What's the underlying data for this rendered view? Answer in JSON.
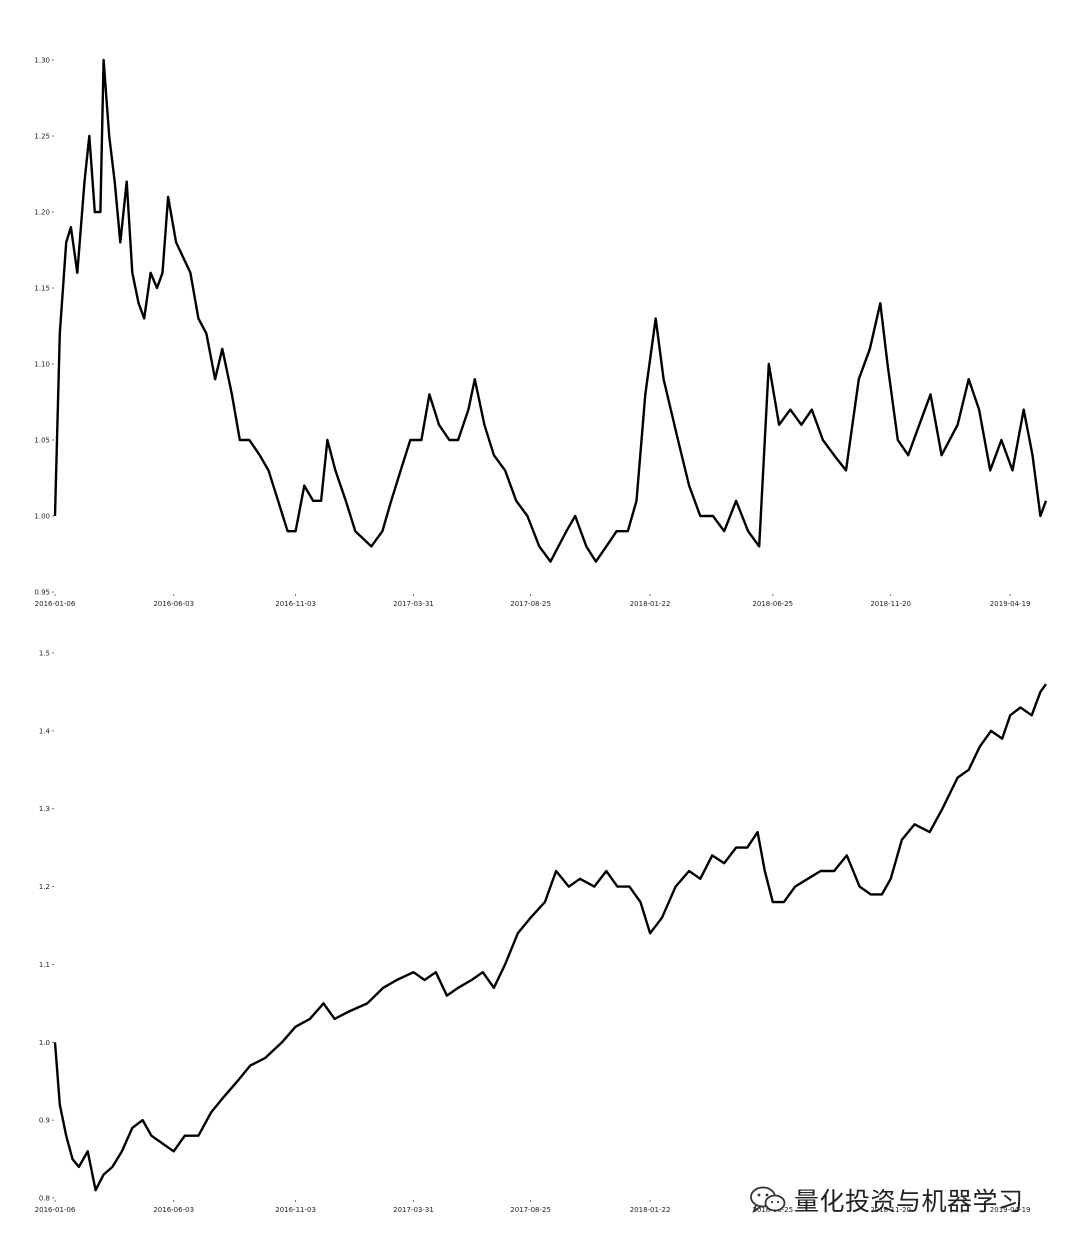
{
  "chart_data": [
    {
      "type": "line",
      "ylim": [
        0.95,
        1.3
      ],
      "yticks": [
        "0.95",
        "1.00",
        "1.05",
        "1.10",
        "1.15",
        "1.20",
        "1.25",
        "1.30"
      ],
      "xticks": [
        "2016-01-06",
        "2016-06-03",
        "2016-11-03",
        "2017-03-31",
        "2017-08-25",
        "2018-01-22",
        "2018-06-25",
        "2018-11-20",
        "2019-04-19"
      ],
      "x_range": [
        "2016-01-06",
        "2019-06-03"
      ],
      "grid": false,
      "series": [
        {
          "points": [
            [
              "2016-01-06",
              1.0
            ],
            [
              "2016-01-12",
              1.12
            ],
            [
              "2016-01-20",
              1.18
            ],
            [
              "2016-01-26",
              1.19
            ],
            [
              "2016-02-03",
              1.16
            ],
            [
              "2016-02-12",
              1.22
            ],
            [
              "2016-02-18",
              1.25
            ],
            [
              "2016-02-25",
              1.2
            ],
            [
              "2016-03-03",
              1.2
            ],
            [
              "2016-03-07",
              1.3
            ],
            [
              "2016-03-14",
              1.25
            ],
            [
              "2016-03-21",
              1.22
            ],
            [
              "2016-03-28",
              1.18
            ],
            [
              "2016-04-05",
              1.22
            ],
            [
              "2016-04-12",
              1.16
            ],
            [
              "2016-04-20",
              1.14
            ],
            [
              "2016-04-27",
              1.13
            ],
            [
              "2016-05-05",
              1.16
            ],
            [
              "2016-05-13",
              1.15
            ],
            [
              "2016-05-20",
              1.16
            ],
            [
              "2016-05-27",
              1.21
            ],
            [
              "2016-06-06",
              1.18
            ],
            [
              "2016-06-15",
              1.17
            ],
            [
              "2016-06-24",
              1.16
            ],
            [
              "2016-07-04",
              1.13
            ],
            [
              "2016-07-14",
              1.12
            ],
            [
              "2016-07-25",
              1.09
            ],
            [
              "2016-08-03",
              1.11
            ],
            [
              "2016-08-15",
              1.08
            ],
            [
              "2016-08-25",
              1.05
            ],
            [
              "2016-09-06",
              1.05
            ],
            [
              "2016-09-19",
              1.04
            ],
            [
              "2016-09-30",
              1.03
            ],
            [
              "2016-10-12",
              1.01
            ],
            [
              "2016-10-24",
              0.99
            ],
            [
              "2016-11-03",
              0.99
            ],
            [
              "2016-11-14",
              1.02
            ],
            [
              "2016-11-25",
              1.01
            ],
            [
              "2016-12-05",
              1.01
            ],
            [
              "2016-12-13",
              1.05
            ],
            [
              "2016-12-23",
              1.03
            ],
            [
              "2017-01-05",
              1.01
            ],
            [
              "2017-01-17",
              0.99
            ],
            [
              "2017-02-06",
              0.98
            ],
            [
              "2017-02-20",
              0.99
            ],
            [
              "2017-03-03",
              1.01
            ],
            [
              "2017-03-15",
              1.03
            ],
            [
              "2017-03-27",
              1.05
            ],
            [
              "2017-04-10",
              1.05
            ],
            [
              "2017-04-20",
              1.08
            ],
            [
              "2017-05-02",
              1.06
            ],
            [
              "2017-05-15",
              1.05
            ],
            [
              "2017-05-26",
              1.05
            ],
            [
              "2017-06-08",
              1.07
            ],
            [
              "2017-06-16",
              1.09
            ],
            [
              "2017-06-28",
              1.06
            ],
            [
              "2017-07-10",
              1.04
            ],
            [
              "2017-07-24",
              1.03
            ],
            [
              "2017-08-07",
              1.01
            ],
            [
              "2017-08-21",
              1.0
            ],
            [
              "2017-09-05",
              0.98
            ],
            [
              "2017-09-19",
              0.97
            ],
            [
              "2017-10-09",
              0.99
            ],
            [
              "2017-10-20",
              1.0
            ],
            [
              "2017-11-03",
              0.98
            ],
            [
              "2017-11-15",
              0.97
            ],
            [
              "2017-11-28",
              0.98
            ],
            [
              "2017-12-11",
              0.99
            ],
            [
              "2017-12-25",
              0.99
            ],
            [
              "2018-01-05",
              1.01
            ],
            [
              "2018-01-16",
              1.08
            ],
            [
              "2018-01-29",
              1.13
            ],
            [
              "2018-02-08",
              1.09
            ],
            [
              "2018-02-26",
              1.05
            ],
            [
              "2018-03-12",
              1.02
            ],
            [
              "2018-03-26",
              1.0
            ],
            [
              "2018-04-11",
              1.0
            ],
            [
              "2018-04-25",
              0.99
            ],
            [
              "2018-05-10",
              1.01
            ],
            [
              "2018-05-25",
              0.99
            ],
            [
              "2018-06-08",
              0.98
            ],
            [
              "2018-06-20",
              1.1
            ],
            [
              "2018-07-03",
              1.06
            ],
            [
              "2018-07-17",
              1.07
            ],
            [
              "2018-07-31",
              1.06
            ],
            [
              "2018-08-13",
              1.07
            ],
            [
              "2018-08-27",
              1.05
            ],
            [
              "2018-09-10",
              1.04
            ],
            [
              "2018-09-25",
              1.03
            ],
            [
              "2018-10-11",
              1.09
            ],
            [
              "2018-10-25",
              1.11
            ],
            [
              "2018-11-07",
              1.14
            ],
            [
              "2018-11-16",
              1.1
            ],
            [
              "2018-11-29",
              1.05
            ],
            [
              "2018-12-12",
              1.04
            ],
            [
              "2018-12-26",
              1.06
            ],
            [
              "2019-01-09",
              1.08
            ],
            [
              "2019-01-23",
              1.04
            ],
            [
              "2019-02-12",
              1.06
            ],
            [
              "2019-02-26",
              1.09
            ],
            [
              "2019-03-11",
              1.07
            ],
            [
              "2019-03-25",
              1.03
            ],
            [
              "2019-04-08",
              1.05
            ],
            [
              "2019-04-22",
              1.03
            ],
            [
              "2019-05-06",
              1.07
            ],
            [
              "2019-05-17",
              1.04
            ],
            [
              "2019-05-27",
              1.0
            ],
            [
              "2019-06-03",
              1.01
            ]
          ]
        }
      ]
    },
    {
      "type": "line",
      "ylim": [
        0.8,
        1.5
      ],
      "yticks": [
        "0.8",
        "0.9",
        "1.0",
        "1.1",
        "1.2",
        "1.3",
        "1.4",
        "1.5"
      ],
      "xticks": [
        "2016-01-06",
        "2016-06-03",
        "2016-11-03",
        "2017-03-31",
        "2017-08-25",
        "2018-01-22",
        "2018-06-25",
        "2018-11-20",
        "2019-04-19"
      ],
      "x_range": [
        "2016-01-06",
        "2019-06-03"
      ],
      "grid": false,
      "series": [
        {
          "points": [
            [
              "2016-01-06",
              1.0
            ],
            [
              "2016-01-12",
              0.92
            ],
            [
              "2016-01-20",
              0.88
            ],
            [
              "2016-01-28",
              0.85
            ],
            [
              "2016-02-05",
              0.84
            ],
            [
              "2016-02-16",
              0.86
            ],
            [
              "2016-02-26",
              0.81
            ],
            [
              "2016-03-07",
              0.83
            ],
            [
              "2016-03-18",
              0.84
            ],
            [
              "2016-03-30",
              0.86
            ],
            [
              "2016-04-12",
              0.89
            ],
            [
              "2016-04-25",
              0.9
            ],
            [
              "2016-05-06",
              0.88
            ],
            [
              "2016-05-20",
              0.87
            ],
            [
              "2016-06-03",
              0.86
            ],
            [
              "2016-06-17",
              0.88
            ],
            [
              "2016-07-04",
              0.88
            ],
            [
              "2016-07-20",
              0.91
            ],
            [
              "2016-08-05",
              0.93
            ],
            [
              "2016-08-22",
              0.95
            ],
            [
              "2016-09-07",
              0.97
            ],
            [
              "2016-09-26",
              0.98
            ],
            [
              "2016-10-17",
              1.0
            ],
            [
              "2016-11-03",
              1.02
            ],
            [
              "2016-11-21",
              1.03
            ],
            [
              "2016-12-08",
              1.05
            ],
            [
              "2016-12-22",
              1.03
            ],
            [
              "2017-01-10",
              1.04
            ],
            [
              "2017-02-01",
              1.05
            ],
            [
              "2017-02-21",
              1.07
            ],
            [
              "2017-03-10",
              1.08
            ],
            [
              "2017-03-31",
              1.09
            ],
            [
              "2017-04-14",
              1.08
            ],
            [
              "2017-04-28",
              1.09
            ],
            [
              "2017-05-12",
              1.06
            ],
            [
              "2017-05-26",
              1.07
            ],
            [
              "2017-06-12",
              1.08
            ],
            [
              "2017-06-26",
              1.09
            ],
            [
              "2017-07-10",
              1.07
            ],
            [
              "2017-07-24",
              1.1
            ],
            [
              "2017-08-09",
              1.14
            ],
            [
              "2017-08-25",
              1.16
            ],
            [
              "2017-09-12",
              1.18
            ],
            [
              "2017-09-26",
              1.22
            ],
            [
              "2017-10-12",
              1.2
            ],
            [
              "2017-10-26",
              1.21
            ],
            [
              "2017-11-13",
              1.2
            ],
            [
              "2017-11-28",
              1.22
            ],
            [
              "2017-12-12",
              1.2
            ],
            [
              "2017-12-27",
              1.2
            ],
            [
              "2018-01-10",
              1.18
            ],
            [
              "2018-01-22",
              1.14
            ],
            [
              "2018-02-06",
              1.16
            ],
            [
              "2018-02-23",
              1.2
            ],
            [
              "2018-03-12",
              1.22
            ],
            [
              "2018-03-26",
              1.21
            ],
            [
              "2018-04-10",
              1.24
            ],
            [
              "2018-04-25",
              1.23
            ],
            [
              "2018-05-10",
              1.25
            ],
            [
              "2018-05-24",
              1.25
            ],
            [
              "2018-06-06",
              1.27
            ],
            [
              "2018-06-15",
              1.22
            ],
            [
              "2018-06-25",
              1.18
            ],
            [
              "2018-07-09",
              1.18
            ],
            [
              "2018-07-23",
              1.2
            ],
            [
              "2018-08-08",
              1.21
            ],
            [
              "2018-08-24",
              1.22
            ],
            [
              "2018-09-10",
              1.22
            ],
            [
              "2018-09-26",
              1.24
            ],
            [
              "2018-10-12",
              1.2
            ],
            [
              "2018-10-26",
              1.19
            ],
            [
              "2018-11-09",
              1.19
            ],
            [
              "2018-11-20",
              1.21
            ],
            [
              "2018-12-04",
              1.26
            ],
            [
              "2018-12-20",
              1.28
            ],
            [
              "2019-01-08",
              1.27
            ],
            [
              "2019-01-24",
              1.3
            ],
            [
              "2019-02-12",
              1.34
            ],
            [
              "2019-02-26",
              1.35
            ],
            [
              "2019-03-12",
              1.38
            ],
            [
              "2019-03-26",
              1.4
            ],
            [
              "2019-04-09",
              1.39
            ],
            [
              "2019-04-19",
              1.42
            ],
            [
              "2019-05-02",
              1.43
            ],
            [
              "2019-05-16",
              1.42
            ],
            [
              "2019-05-27",
              1.45
            ],
            [
              "2019-06-03",
              1.46
            ]
          ]
        }
      ]
    }
  ],
  "watermark": {
    "text": "量化投资与机器学习",
    "icon": "wechat-icon"
  }
}
